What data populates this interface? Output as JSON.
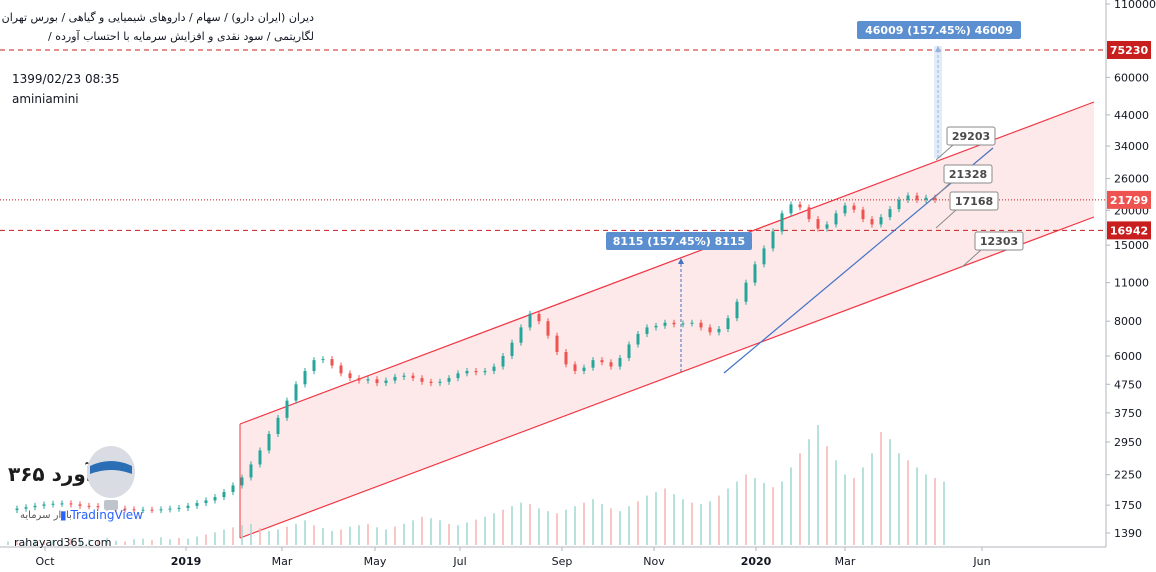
{
  "header": {
    "line1": "دیران (ایران دارو) / سهام / داروهای شیمیایی و گیاهی / بورس تهران",
    "line2": "لگاریتمی / سود نقدی و افزایش سرمایه با احتساب آورده /",
    "timestamp": "1399/02/23 08:35",
    "author": "aminiamini"
  },
  "watermark": {
    "brand": "ره‌آورد ۳۶۵",
    "brand_sub": "بازار سرمایه",
    "tradingview": "TradingView",
    "site": "rahayard365.com"
  },
  "colors": {
    "up": "#26a69a",
    "down": "#ef5350",
    "channel": "#f23645",
    "channel_fill": "#fde4e4",
    "trendline": "#4472c4",
    "callout_fill": "#5b8fd0",
    "price_tag": "#c81e1e",
    "last_price_tag": "#ef5350"
  },
  "chart_data": {
    "type": "candlestick",
    "scale": "log",
    "x_labels": [
      "Oct",
      "2019",
      "Mar",
      "May",
      "Jul",
      "Sep",
      "Nov",
      "2020",
      "Mar",
      "Jun"
    ],
    "y_ticks": [
      1390,
      1750,
      2250,
      2950,
      3750,
      4750,
      6000,
      8000,
      11000,
      15000,
      20000,
      26000,
      34000,
      44000,
      60000,
      110000
    ],
    "y_tick_labels": [
      "1390",
      "1750",
      "2250",
      "2950",
      "3750",
      "4750",
      "6000",
      "8000",
      "11000",
      "15000",
      "20000",
      "26000",
      "34000",
      "44000",
      "60000",
      "110000"
    ],
    "price_tags": [
      {
        "value": 75230,
        "label": "75230",
        "style": "tag"
      },
      {
        "value": 21799,
        "label": "21799",
        "style": "last"
      },
      {
        "value": 16942,
        "label": "16942",
        "style": "tag"
      }
    ],
    "horizontal_lines": [
      {
        "value": 75230,
        "style": "dashed"
      },
      {
        "value": 21799,
        "style": "dotted"
      },
      {
        "value": 16942,
        "style": "dashed"
      }
    ],
    "projections": [
      {
        "label": "8115 (157.45%) 8115"
      },
      {
        "label": "46009 (157.45%) 46009"
      }
    ],
    "callouts": [
      {
        "label": "29203"
      },
      {
        "label": "21328"
      },
      {
        "label": "17168"
      },
      {
        "label": "12303"
      }
    ],
    "series": [
      {
        "points": [
          [
            0,
            1680
          ],
          [
            3,
            1700
          ],
          [
            6,
            1720
          ],
          [
            9,
            1740
          ],
          [
            12,
            1760
          ],
          [
            15,
            1770
          ],
          [
            18,
            1775
          ],
          [
            21,
            1760
          ],
          [
            24,
            1740
          ],
          [
            27,
            1735
          ],
          [
            30,
            1720
          ],
          [
            33,
            1715
          ],
          [
            36,
            1700
          ],
          [
            39,
            1690
          ],
          [
            42,
            1682
          ],
          [
            45,
            1685
          ],
          [
            48,
            1680
          ],
          [
            51,
            1690
          ],
          [
            54,
            1700
          ],
          [
            57,
            1710
          ],
          [
            60,
            1740
          ],
          [
            63,
            1780
          ],
          [
            66,
            1820
          ],
          [
            69,
            1870
          ],
          [
            72,
            1950
          ],
          [
            75,
            2060
          ],
          [
            78,
            2200
          ],
          [
            81,
            2450
          ],
          [
            84,
            2750
          ],
          [
            87,
            3150
          ],
          [
            90,
            3600
          ],
          [
            93,
            4150
          ],
          [
            96,
            4750
          ],
          [
            99,
            5300
          ],
          [
            102,
            5800
          ],
          [
            105,
            5850
          ],
          [
            108,
            5550
          ],
          [
            111,
            5200
          ],
          [
            114,
            5000
          ],
          [
            117,
            4900
          ],
          [
            120,
            4950
          ],
          [
            123,
            4800
          ],
          [
            126,
            4900
          ],
          [
            129,
            5050
          ],
          [
            132,
            5100
          ],
          [
            135,
            5000
          ],
          [
            138,
            4850
          ],
          [
            141,
            4800
          ],
          [
            144,
            4850
          ],
          [
            147,
            5000
          ],
          [
            150,
            5200
          ],
          [
            153,
            5300
          ],
          [
            156,
            5250
          ],
          [
            159,
            5300
          ],
          [
            162,
            5500
          ],
          [
            165,
            6000
          ],
          [
            168,
            6700
          ],
          [
            171,
            7600
          ],
          [
            174,
            8500
          ],
          [
            177,
            8000
          ],
          [
            180,
            7100
          ],
          [
            183,
            6200
          ],
          [
            186,
            5600
          ],
          [
            189,
            5300
          ],
          [
            192,
            5450
          ],
          [
            195,
            5800
          ],
          [
            198,
            5700
          ],
          [
            201,
            5500
          ],
          [
            204,
            5900
          ],
          [
            207,
            6600
          ],
          [
            210,
            7200
          ],
          [
            213,
            7600
          ],
          [
            216,
            7700
          ],
          [
            219,
            7900
          ],
          [
            222,
            7800
          ],
          [
            225,
            7850
          ],
          [
            228,
            7900
          ],
          [
            231,
            7600
          ],
          [
            234,
            7300
          ],
          [
            237,
            7500
          ],
          [
            240,
            8200
          ],
          [
            243,
            9400
          ],
          [
            246,
            11000
          ],
          [
            249,
            12800
          ],
          [
            252,
            14600
          ],
          [
            255,
            16800
          ],
          [
            258,
            19500
          ],
          [
            261,
            21000
          ],
          [
            264,
            20500
          ],
          [
            267,
            18600
          ],
          [
            270,
            17200
          ],
          [
            273,
            17800
          ],
          [
            276,
            19500
          ],
          [
            279,
            20800
          ],
          [
            282,
            20100
          ],
          [
            285,
            18600
          ],
          [
            288,
            17800
          ],
          [
            291,
            18900
          ],
          [
            294,
            20200
          ],
          [
            297,
            21800
          ],
          [
            300,
            22600
          ],
          [
            303,
            21800
          ],
          [
            306,
            22200
          ],
          [
            309,
            21800
          ]
        ]
      }
    ],
    "volume": [
      5,
      6,
      4,
      8,
      5,
      7,
      6,
      9,
      5,
      8,
      7,
      10,
      6,
      5,
      8,
      9,
      7,
      11,
      8,
      10,
      9,
      12,
      15,
      18,
      22,
      25,
      28,
      30,
      24,
      20,
      22,
      26,
      30,
      35,
      28,
      24,
      20,
      22,
      26,
      28,
      30,
      25,
      22,
      26,
      30,
      35,
      40,
      38,
      35,
      30,
      28,
      32,
      36,
      40,
      45,
      50,
      55,
      60,
      58,
      52,
      48,
      45,
      50,
      55,
      60,
      65,
      58,
      52,
      48,
      55,
      62,
      70,
      75,
      80,
      72,
      65,
      60,
      58,
      62,
      70,
      80,
      90,
      100,
      95,
      88,
      82,
      90,
      110,
      130,
      150,
      170,
      140,
      120,
      100,
      95,
      110,
      130,
      160,
      150,
      130,
      120,
      110,
      100,
      95,
      90
    ]
  }
}
